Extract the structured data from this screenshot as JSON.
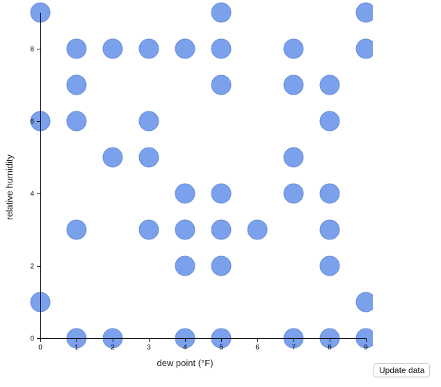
{
  "chart_data": {
    "type": "scatter",
    "xlabel": "dew point (°F)",
    "ylabel": "relative humidity",
    "xlim": [
      0,
      9
    ],
    "ylim": [
      0,
      9
    ],
    "xticks": [
      0,
      1,
      2,
      3,
      4,
      5,
      6,
      7,
      8,
      9
    ],
    "yticks": [
      0,
      2,
      4,
      6,
      8
    ],
    "grid": false,
    "point_color": "#7ba0ec",
    "points": [
      {
        "x": 0,
        "y": 9
      },
      {
        "x": 5,
        "y": 9
      },
      {
        "x": 9,
        "y": 9
      },
      {
        "x": 1,
        "y": 8
      },
      {
        "x": 2,
        "y": 8
      },
      {
        "x": 3,
        "y": 8
      },
      {
        "x": 4,
        "y": 8
      },
      {
        "x": 5,
        "y": 8
      },
      {
        "x": 7,
        "y": 8
      },
      {
        "x": 9,
        "y": 8
      },
      {
        "x": 1,
        "y": 7
      },
      {
        "x": 5,
        "y": 7
      },
      {
        "x": 7,
        "y": 7
      },
      {
        "x": 8,
        "y": 7
      },
      {
        "x": 0,
        "y": 6
      },
      {
        "x": 1,
        "y": 6
      },
      {
        "x": 3,
        "y": 6
      },
      {
        "x": 8,
        "y": 6
      },
      {
        "x": 2,
        "y": 5
      },
      {
        "x": 3,
        "y": 5
      },
      {
        "x": 7,
        "y": 5
      },
      {
        "x": 4,
        "y": 4
      },
      {
        "x": 5,
        "y": 4
      },
      {
        "x": 7,
        "y": 4
      },
      {
        "x": 8,
        "y": 4
      },
      {
        "x": 1,
        "y": 3
      },
      {
        "x": 3,
        "y": 3
      },
      {
        "x": 4,
        "y": 3
      },
      {
        "x": 5,
        "y": 3
      },
      {
        "x": 6,
        "y": 3
      },
      {
        "x": 8,
        "y": 3
      },
      {
        "x": 4,
        "y": 2
      },
      {
        "x": 5,
        "y": 2
      },
      {
        "x": 8,
        "y": 2
      },
      {
        "x": 0,
        "y": 1
      },
      {
        "x": 9,
        "y": 1
      },
      {
        "x": 1,
        "y": 0
      },
      {
        "x": 2,
        "y": 0
      },
      {
        "x": 4,
        "y": 0
      },
      {
        "x": 5,
        "y": 0
      },
      {
        "x": 7,
        "y": 0
      },
      {
        "x": 8,
        "y": 0
      },
      {
        "x": 9,
        "y": 0
      }
    ]
  },
  "controls": {
    "update_label": "Update data"
  }
}
